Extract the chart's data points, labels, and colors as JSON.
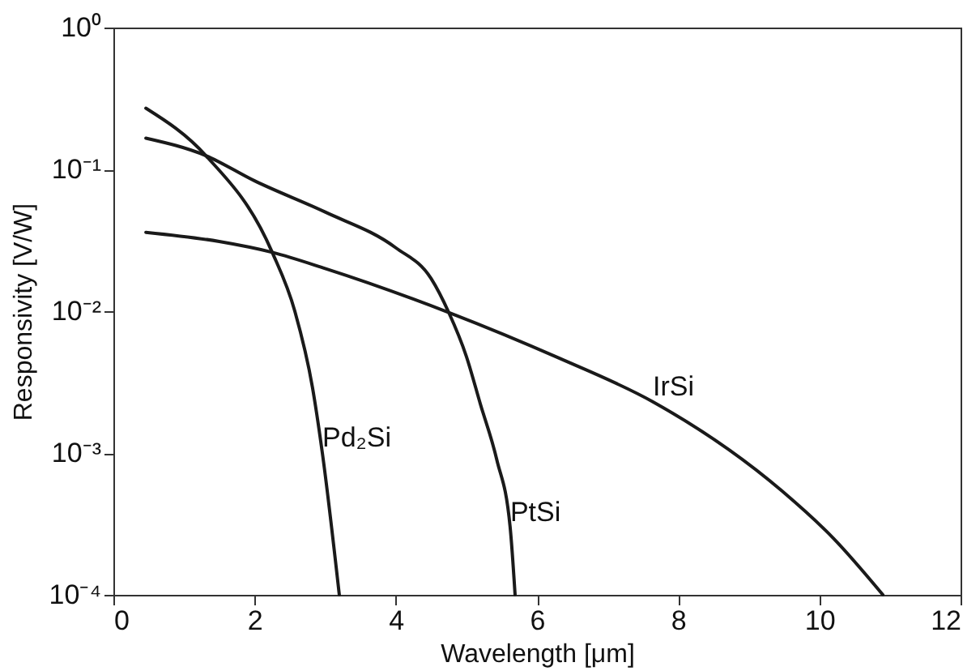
{
  "chart_data": {
    "type": "line",
    "xlabel": "Wavelength [μm]",
    "ylabel": "Responsivity [V/W]",
    "log": "y",
    "grid": false,
    "marker": "none",
    "line_style": "solid",
    "xlim": [
      0,
      12
    ],
    "xticks": [
      0,
      2,
      4,
      6,
      8,
      10,
      12
    ],
    "ylim": [
      0.0001,
      1
    ],
    "yticks": [
      {
        "value": 1,
        "label": "10⁰"
      },
      {
        "value": 0.1,
        "label": "10⁻¹"
      },
      {
        "value": 0.01,
        "label": "10⁻²"
      },
      {
        "value": 0.001,
        "label": "10⁻³"
      },
      {
        "value": 0.0001,
        "label": "10⁻⁴"
      }
    ],
    "series": [
      {
        "name": "Pd₂Si",
        "color": "#1a1a1a",
        "x": [
          0.46,
          1.31,
          2.25,
          2.57,
          2.82,
          2.96,
          3.2
        ],
        "values": [
          0.27,
          0.125,
          0.026,
          0.01,
          0.0029,
          0.001,
          0.0001
        ]
      },
      {
        "name": "PtSi",
        "color": "#1a1a1a",
        "x": [
          0.46,
          1.31,
          2.0,
          3.0,
          4.0,
          4.5,
          4.75,
          5.0,
          5.2,
          5.43,
          5.62,
          5.69
        ],
        "values": [
          0.166,
          0.125,
          0.083,
          0.05,
          0.028,
          0.017,
          0.0098,
          0.0048,
          0.0022,
          0.0009,
          0.0003,
          0.0001
        ]
      },
      {
        "name": "IrSi",
        "color": "#1a1a1a",
        "x": [
          0.46,
          1.5,
          2.25,
          3.0,
          4.75,
          6.3,
          7.64,
          9.47,
          10.2,
          10.9
        ],
        "values": [
          0.036,
          0.031,
          0.026,
          0.02,
          0.0098,
          0.0047,
          0.0023,
          0.00054,
          0.00025,
          0.0001
        ]
      }
    ]
  }
}
